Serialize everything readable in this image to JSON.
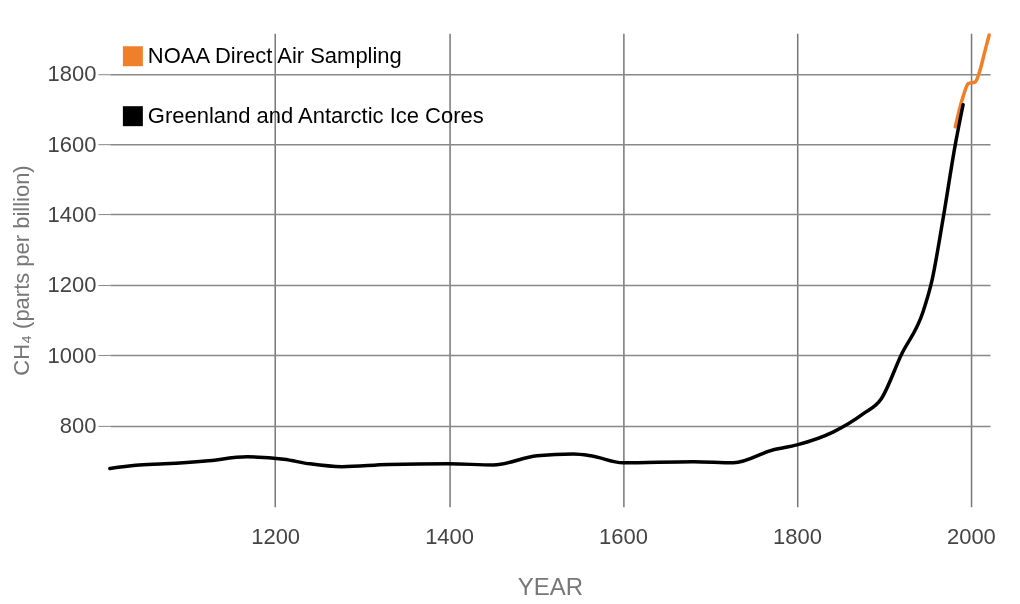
{
  "chart_data": {
    "type": "line",
    "xlabel": "YEAR",
    "ylabel": "CH₄ (parts per billion)",
    "xlim": [
      1010,
      2022
    ],
    "ylim": [
      570,
      1915
    ],
    "xticks": [
      1200,
      1400,
      1600,
      1800,
      2000
    ],
    "yticks": [
      800,
      1000,
      1200,
      1400,
      1600,
      1800
    ],
    "grid": true,
    "legend": "top left",
    "marker": "none",
    "line_style": "solid",
    "series": [
      {
        "name": "NOAA Direct Air Sampling",
        "color": "#f07f2a",
        "x": [
          1982,
          1991,
          1997,
          2005,
          2010,
          2016,
          2021
        ],
        "values": [
          1649,
          1735,
          1772,
          1777,
          1806,
          1863,
          1910
        ]
      },
      {
        "name": "Greenland and Antarctic Ice Cores",
        "color": "#000000",
        "x": [
          1010,
          1040,
          1073,
          1120,
          1168,
          1210,
          1240,
          1277,
          1330,
          1400,
          1451,
          1501,
          1543,
          1563,
          1600,
          1681,
          1727,
          1773,
          1800,
          1842,
          1876,
          1897,
          1920,
          1945,
          1955,
          1968,
          1982,
          1991
        ],
        "values": [
          679,
          688,
          692,
          700,
          712,
          705,
          692,
          684,
          690,
          692,
          689,
          715,
          720,
          715,
          695,
          698,
          695,
          732,
          746,
          783,
          834,
          877,
          1002,
          1124,
          1210,
          1388,
          1598,
          1712
        ]
      }
    ]
  }
}
